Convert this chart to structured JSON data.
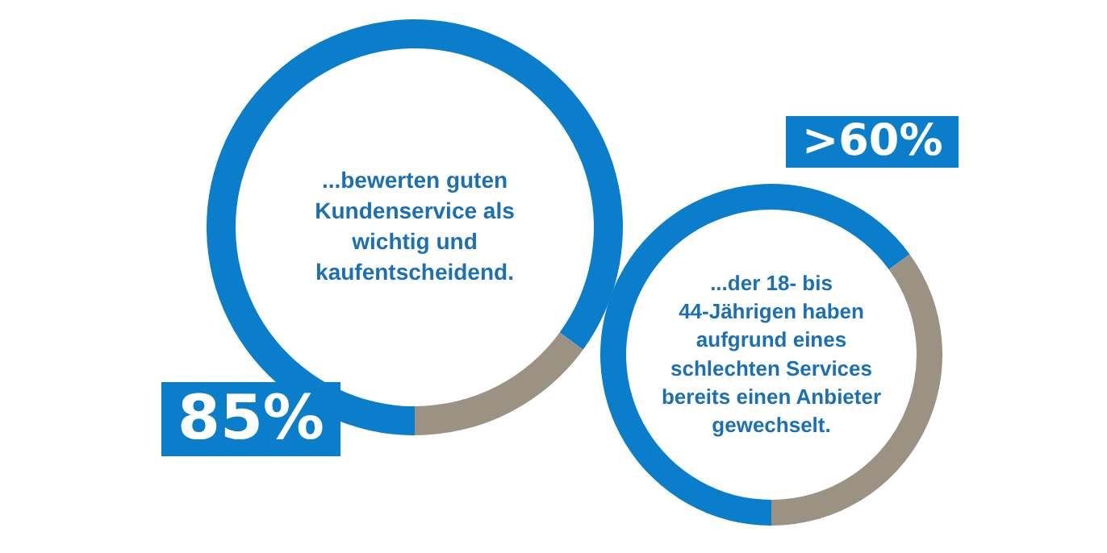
{
  "chart_data": [
    {
      "type": "donut",
      "categories": [
        null,
        null
      ],
      "values": [
        85,
        15
      ],
      "colors": [
        "#0a7dcb",
        "#9c9284"
      ],
      "value_labels": [
        "85%",
        null
      ],
      "annotations": [
        "...bewerten guten Kundenservice als wichtig und kaufentscheidend."
      ]
    },
    {
      "type": "donut",
      "categories": [
        null,
        null
      ],
      "values": [
        65,
        35
      ],
      "colors": [
        "#0a7dcb",
        "#9c9284"
      ],
      "value_labels": [
        ">60%",
        null
      ],
      "annotations": [
        "...der 18- bis 44-Jährigen haben aufgrund eines schlechten Services bereits einen Anbieter gewechselt."
      ]
    }
  ]
}
